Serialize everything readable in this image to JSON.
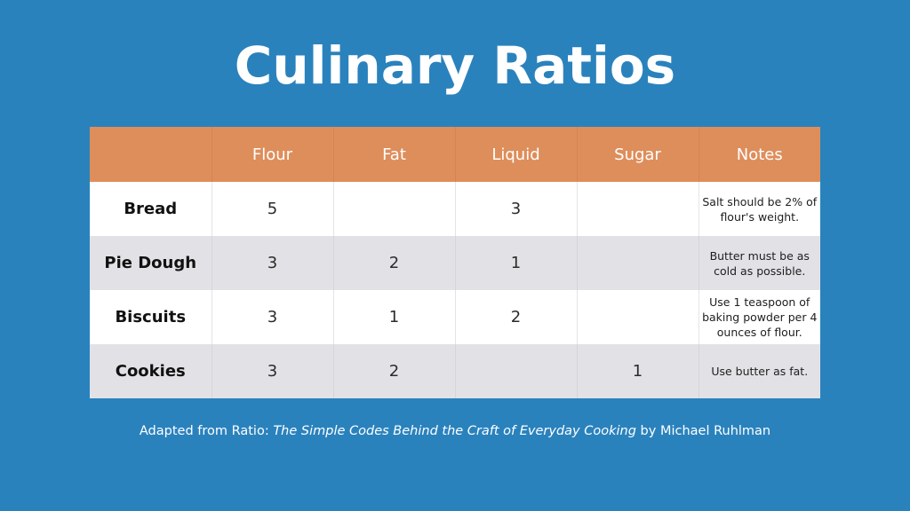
{
  "title": "Culinary Ratios",
  "table": {
    "headers": [
      "",
      "Flour",
      "Fat",
      "Liquid",
      "Sugar",
      "Notes"
    ],
    "rows": [
      {
        "name": "Bread",
        "flour": "5",
        "fat": "",
        "liquid": "3",
        "sugar": "",
        "notes": "Salt should be 2% of flour's weight."
      },
      {
        "name": "Pie Dough",
        "flour": "3",
        "fat": "2",
        "liquid": "1",
        "sugar": "",
        "notes": "Butter must be as cold as possible."
      },
      {
        "name": "Biscuits",
        "flour": "3",
        "fat": "1",
        "liquid": "2",
        "sugar": "",
        "notes": "Use 1 teaspoon of baking powder per 4 ounces of flour."
      },
      {
        "name": "Cookies",
        "flour": "3",
        "fat": "2",
        "liquid": "",
        "sugar": "1",
        "notes": "Use butter as fat."
      }
    ]
  },
  "footer": {
    "prefix": "Adapted from Ratio: ",
    "book_title": "The Simple Codes Behind the Craft of Everyday Cooking",
    "suffix": " by Michael Ruhlman"
  },
  "colors": {
    "background": "#2a82bd",
    "header_fill": "#de8e5b",
    "row_light": "#ffffff",
    "row_shaded": "#e2e2e6"
  }
}
